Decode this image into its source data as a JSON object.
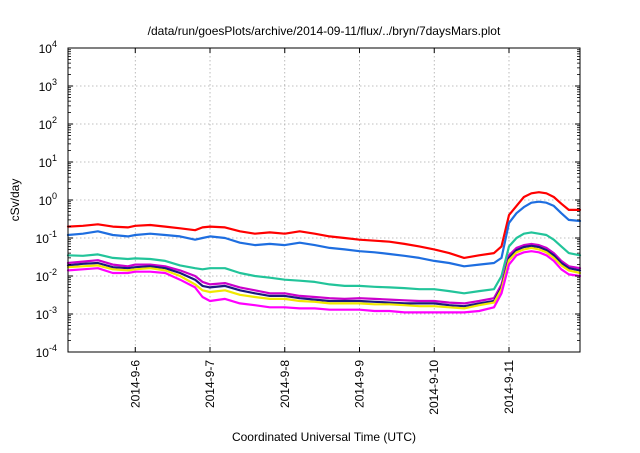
{
  "chart_data": {
    "type": "line",
    "title": "/data/run/goesPlots/archive/2014-09-11/flux/../bryn/7daysMars.plot",
    "xlabel": "Coordinated Universal Time (UTC)",
    "ylabel": "cSv/day",
    "y_scale": "log",
    "ylim": [
      0.0001,
      10000
    ],
    "y_tick_exponents": [
      -4,
      -3,
      -2,
      -1,
      0,
      1,
      2,
      3,
      4
    ],
    "xlim": [
      5.1,
      11.95
    ],
    "x_units": "days of September 2014",
    "x_ticks": [
      {
        "pos": 6,
        "label": "2014-9-6"
      },
      {
        "pos": 7,
        "label": "2014-9-7"
      },
      {
        "pos": 8,
        "label": "2014-9-8"
      },
      {
        "pos": 9,
        "label": "2014-9-9"
      },
      {
        "pos": 10,
        "label": "2014-9-10"
      },
      {
        "pos": 11,
        "label": "2014-9-11"
      }
    ],
    "grid": true,
    "legend": "none",
    "x": [
      5.1,
      5.3,
      5.5,
      5.7,
      5.9,
      6.0,
      6.2,
      6.4,
      6.6,
      6.8,
      6.9,
      7.0,
      7.2,
      7.4,
      7.6,
      7.8,
      8.0,
      8.2,
      8.4,
      8.6,
      8.8,
      9.0,
      9.2,
      9.4,
      9.6,
      9.8,
      10.0,
      10.2,
      10.4,
      10.6,
      10.8,
      10.9,
      11.0,
      11.1,
      11.2,
      11.3,
      11.4,
      11.5,
      11.6,
      11.7,
      11.8,
      11.95
    ],
    "series": [
      {
        "color": "#ff0000",
        "values": [
          0.2,
          0.21,
          0.23,
          0.2,
          0.19,
          0.21,
          0.22,
          0.2,
          0.18,
          0.16,
          0.19,
          0.2,
          0.19,
          0.15,
          0.13,
          0.14,
          0.13,
          0.15,
          0.13,
          0.11,
          0.1,
          0.09,
          0.085,
          0.08,
          0.07,
          0.06,
          0.05,
          0.04,
          0.03,
          0.035,
          0.04,
          0.06,
          0.4,
          0.7,
          1.2,
          1.5,
          1.6,
          1.5,
          1.2,
          0.8,
          0.55,
          0.55
        ]
      },
      {
        "color": "#1e6ee0",
        "values": [
          0.12,
          0.13,
          0.15,
          0.12,
          0.11,
          0.12,
          0.13,
          0.12,
          0.11,
          0.09,
          0.1,
          0.11,
          0.1,
          0.075,
          0.065,
          0.07,
          0.065,
          0.075,
          0.065,
          0.055,
          0.05,
          0.045,
          0.042,
          0.038,
          0.034,
          0.03,
          0.025,
          0.022,
          0.018,
          0.02,
          0.022,
          0.03,
          0.25,
          0.45,
          0.65,
          0.85,
          0.9,
          0.85,
          0.7,
          0.45,
          0.3,
          0.28
        ]
      },
      {
        "color": "#22c49a",
        "values": [
          0.035,
          0.034,
          0.037,
          0.03,
          0.028,
          0.029,
          0.028,
          0.025,
          0.019,
          0.016,
          0.015,
          0.016,
          0.016,
          0.012,
          0.01,
          0.009,
          0.008,
          0.0075,
          0.007,
          0.006,
          0.0055,
          0.0055,
          0.0052,
          0.005,
          0.0048,
          0.0045,
          0.0045,
          0.004,
          0.0035,
          0.004,
          0.0045,
          0.01,
          0.06,
          0.1,
          0.13,
          0.14,
          0.13,
          0.12,
          0.09,
          0.06,
          0.04,
          0.035
        ]
      },
      {
        "color": "#cc00cc",
        "values": [
          0.022,
          0.024,
          0.026,
          0.02,
          0.018,
          0.02,
          0.02,
          0.018,
          0.014,
          0.01,
          0.007,
          0.006,
          0.0065,
          0.005,
          0.0042,
          0.0035,
          0.0035,
          0.003,
          0.0028,
          0.0026,
          0.0025,
          0.0026,
          0.0025,
          0.0024,
          0.0023,
          0.0022,
          0.0022,
          0.002,
          0.0019,
          0.0022,
          0.0026,
          0.006,
          0.035,
          0.055,
          0.065,
          0.07,
          0.065,
          0.055,
          0.04,
          0.025,
          0.018,
          0.016
        ]
      },
      {
        "color": "#1a1a80",
        "values": [
          0.019,
          0.021,
          0.022,
          0.017,
          0.016,
          0.017,
          0.018,
          0.016,
          0.012,
          0.008,
          0.0055,
          0.005,
          0.0055,
          0.0042,
          0.0035,
          0.003,
          0.003,
          0.0026,
          0.0024,
          0.0022,
          0.0022,
          0.0022,
          0.0021,
          0.002,
          0.0019,
          0.0019,
          0.0019,
          0.0017,
          0.0016,
          0.0019,
          0.0022,
          0.005,
          0.03,
          0.048,
          0.058,
          0.062,
          0.058,
          0.048,
          0.035,
          0.022,
          0.016,
          0.014
        ]
      },
      {
        "color": "#f0e800",
        "values": [
          0.017,
          0.018,
          0.019,
          0.015,
          0.014,
          0.015,
          0.016,
          0.014,
          0.01,
          0.006,
          0.0042,
          0.0038,
          0.0042,
          0.0032,
          0.0028,
          0.0025,
          0.0025,
          0.0022,
          0.0021,
          0.0019,
          0.0019,
          0.0019,
          0.0018,
          0.0018,
          0.0017,
          0.0016,
          0.0016,
          0.0015,
          0.0014,
          0.0017,
          0.002,
          0.0045,
          0.026,
          0.042,
          0.05,
          0.055,
          0.05,
          0.042,
          0.03,
          0.019,
          0.014,
          0.012
        ]
      },
      {
        "color": "#ff00ff",
        "values": [
          0.014,
          0.015,
          0.016,
          0.012,
          0.012,
          0.013,
          0.013,
          0.012,
          0.008,
          0.005,
          0.0028,
          0.0022,
          0.0025,
          0.0019,
          0.0017,
          0.0015,
          0.0015,
          0.0014,
          0.0014,
          0.0013,
          0.0013,
          0.0013,
          0.0012,
          0.0012,
          0.0011,
          0.0011,
          0.0011,
          0.0011,
          0.0011,
          0.0012,
          0.0015,
          0.0035,
          0.02,
          0.035,
          0.042,
          0.045,
          0.042,
          0.035,
          0.025,
          0.015,
          0.011,
          0.01
        ]
      }
    ]
  }
}
